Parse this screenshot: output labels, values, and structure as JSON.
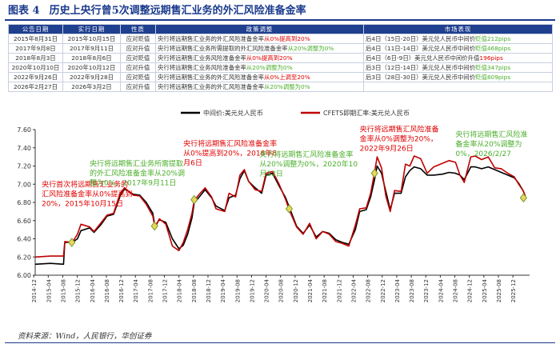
{
  "figure": {
    "label": "图表 4",
    "title": "历史上央行曾5次调整远期售汇业务的外汇风险准备金率"
  },
  "table": {
    "headers": [
      "公告日期",
      "实行日期",
      "性质",
      "政策调整",
      "市场表现"
    ],
    "rows": [
      {
        "announce": "2015年8月31日",
        "effective": "2015年10月15日",
        "nature": "应对贬值",
        "policy_pre": "央行将远期售汇业务的外汇风险准备金率",
        "policy_hl": "从0%提高到20%",
        "policy_hl_class": "red",
        "market_pre": "后4日（15日-20日）美元兑人民币中间价",
        "market_hl": "贬值212pips",
        "market_hl_class": "green"
      },
      {
        "announce": "2017年9月8日",
        "effective": "2017年9月11日",
        "nature": "应对升值",
        "policy_pre": "央行将远期售汇业务所需提取的外汇风险准备金率",
        "policy_hl": "从20%调整为0%",
        "policy_hl_class": "green",
        "market_pre": "后4日（11日-14日）美元兑人民币中间价",
        "market_hl": "贬值468pips",
        "market_hl_class": "green"
      },
      {
        "announce": "2018年8月3日",
        "effective": "2018年8月6日",
        "nature": "应对贬值",
        "policy_pre": "央行将远期售汇业务风险准备金率",
        "policy_hl": "从0%提高到20%",
        "policy_hl_class": "red",
        "market_pre": "后4日（6日-9日）美元兑人民币中间价升值",
        "market_hl": "196pips",
        "market_hl_class": "red"
      },
      {
        "announce": "2020年10月10日",
        "effective": "2020年10月12日",
        "nature": "应对升值",
        "policy_pre": "央行将远期售汇业务风险准备金率",
        "policy_hl": "从20%调整为0%",
        "policy_hl_class": "green",
        "market_pre": "后3日（12日-14日）美元兑人民币中间价",
        "market_hl": "贬值347pips",
        "market_hl_class": "green"
      },
      {
        "announce": "2022年9月26日",
        "effective": "2022年9月28日",
        "nature": "应对贬值",
        "policy_pre": "央行将远期售汇业务的外汇风险准备金率",
        "policy_hl": "从0%上调至20%",
        "policy_hl_class": "red",
        "market_pre": "后3日（28日-30日）美元兑人民币中间价",
        "market_hl": "贬值809pips",
        "market_hl_class": "green"
      },
      {
        "announce": "2026年2月27日",
        "effective": "2026年3月2日",
        "nature": "应对升值",
        "policy_pre": "央行将远期售汇业务的外汇风险准备金率",
        "policy_hl": "从20%调整为0%",
        "policy_hl_class": "green",
        "market_pre": "",
        "market_hl": "",
        "market_hl_class": "green"
      }
    ]
  },
  "chart_data": {
    "type": "line",
    "title": "",
    "xlabel": "",
    "ylabel": "",
    "ylim": [
      6.0,
      7.6
    ],
    "yticks": [
      "6.00",
      "6.20",
      "6.40",
      "6.60",
      "6.80",
      "7.00",
      "7.20",
      "7.40",
      "7.60"
    ],
    "yvalues": [
      6.0,
      6.2,
      6.4,
      6.6,
      6.8,
      7.0,
      7.2,
      7.4,
      7.6
    ],
    "xticks": [
      "2014-12",
      "2015-04",
      "2015-08",
      "2015-12",
      "2016-04",
      "2016-08",
      "2016-12",
      "2017-04",
      "2017-08",
      "2017-12",
      "2018-04",
      "2018-08",
      "2018-12",
      "2019-04",
      "2019-08",
      "2019-12",
      "2020-04",
      "2020-08",
      "2020-12",
      "2021-04",
      "2021-08",
      "2021-12",
      "2022-04",
      "2022-08",
      "2022-12",
      "2023-04",
      "2023-08",
      "2023-12",
      "2024-04",
      "2024-08",
      "2024-12",
      "2025-04",
      "2025-08",
      "2025-12"
    ],
    "xtick_labels": [
      "2014-12",
      "2015-04",
      "2015-08",
      "2015-12",
      "2016-04",
      "2016-08",
      "2016-12",
      "2017-04",
      "2017-08",
      "2017-12",
      "2018-04",
      "2018-08",
      "2018-12",
      "2019-04",
      "2019-08",
      "2019-12",
      "2020-04",
      "2020-08",
      "2020-12",
      "2021-04",
      "2021-08",
      "2021-12",
      "2022-04",
      "2022-08",
      "2022-12",
      "2023-04",
      "2023-08",
      "2023-12",
      "2024-04",
      "2024-08",
      "2024-12",
      "2025-04",
      "2025-08",
      "2025-12"
    ],
    "xmin": 2014.95,
    "xmax": 2026.3,
    "legend": {
      "placement": "top-right",
      "items": [
        {
          "name": "中间价:美元兑人民币",
          "color": "#000000"
        },
        {
          "name": "CFETS即期汇率:美元兑人民币",
          "color": "#c00000"
        }
      ]
    },
    "series": [
      {
        "name": "中间价:美元兑人民币",
        "color": "#000000",
        "points": [
          [
            2014.95,
            6.12
          ],
          [
            2015.3,
            6.13
          ],
          [
            2015.6,
            6.12
          ],
          [
            2015.63,
            6.36
          ],
          [
            2015.8,
            6.36
          ],
          [
            2015.92,
            6.4
          ],
          [
            2016.0,
            6.49
          ],
          [
            2016.2,
            6.52
          ],
          [
            2016.3,
            6.47
          ],
          [
            2016.45,
            6.55
          ],
          [
            2016.6,
            6.65
          ],
          [
            2016.75,
            6.67
          ],
          [
            2016.9,
            6.87
          ],
          [
            2017.0,
            6.95
          ],
          [
            2017.2,
            6.89
          ],
          [
            2017.35,
            6.88
          ],
          [
            2017.5,
            6.8
          ],
          [
            2017.65,
            6.68
          ],
          [
            2017.7,
            6.54
          ],
          [
            2017.8,
            6.61
          ],
          [
            2017.95,
            6.58
          ],
          [
            2018.1,
            6.4
          ],
          [
            2018.25,
            6.29
          ],
          [
            2018.35,
            6.33
          ],
          [
            2018.45,
            6.45
          ],
          [
            2018.55,
            6.63
          ],
          [
            2018.6,
            6.79
          ],
          [
            2018.7,
            6.85
          ],
          [
            2018.85,
            6.94
          ],
          [
            2019.0,
            6.85
          ],
          [
            2019.1,
            6.76
          ],
          [
            2019.3,
            6.71
          ],
          [
            2019.4,
            6.85
          ],
          [
            2019.55,
            6.88
          ],
          [
            2019.65,
            7.06
          ],
          [
            2019.75,
            7.15
          ],
          [
            2019.85,
            7.03
          ],
          [
            2020.0,
            6.96
          ],
          [
            2020.15,
            6.9
          ],
          [
            2020.25,
            7.1
          ],
          [
            2020.4,
            7.12
          ],
          [
            2020.55,
            6.98
          ],
          [
            2020.7,
            6.85
          ],
          [
            2020.78,
            6.75
          ],
          [
            2020.95,
            6.54
          ],
          [
            2021.1,
            6.46
          ],
          [
            2021.25,
            6.55
          ],
          [
            2021.4,
            6.42
          ],
          [
            2021.55,
            6.48
          ],
          [
            2021.7,
            6.46
          ],
          [
            2021.85,
            6.39
          ],
          [
            2022.0,
            6.36
          ],
          [
            2022.15,
            6.34
          ],
          [
            2022.3,
            6.5
          ],
          [
            2022.4,
            6.7
          ],
          [
            2022.55,
            6.72
          ],
          [
            2022.65,
            6.86
          ],
          [
            2022.74,
            7.05
          ],
          [
            2022.8,
            7.2
          ],
          [
            2022.9,
            7.12
          ],
          [
            2023.0,
            6.92
          ],
          [
            2023.1,
            6.72
          ],
          [
            2023.2,
            6.9
          ],
          [
            2023.35,
            6.9
          ],
          [
            2023.45,
            7.08
          ],
          [
            2023.55,
            7.15
          ],
          [
            2023.65,
            7.19
          ],
          [
            2023.8,
            7.17
          ],
          [
            2023.95,
            7.1
          ],
          [
            2024.1,
            7.1
          ],
          [
            2024.3,
            7.11
          ],
          [
            2024.45,
            7.13
          ],
          [
            2024.6,
            7.12
          ],
          [
            2024.7,
            7.1
          ],
          [
            2024.8,
            7.05
          ],
          [
            2024.95,
            7.19
          ],
          [
            2025.05,
            7.19
          ],
          [
            2025.2,
            7.17
          ],
          [
            2025.35,
            7.19
          ],
          [
            2025.5,
            7.16
          ],
          [
            2025.65,
            7.13
          ],
          [
            2025.8,
            7.1
          ],
          [
            2025.95,
            7.07
          ],
          [
            2026.05,
            7.01
          ],
          [
            2026.15,
            6.93
          ],
          [
            2026.2,
            6.87
          ]
        ]
      },
      {
        "name": "CFETS即期汇率:美元兑人民币",
        "color": "#c00000",
        "points": [
          [
            2014.95,
            6.2
          ],
          [
            2015.3,
            6.21
          ],
          [
            2015.6,
            6.21
          ],
          [
            2015.63,
            6.37
          ],
          [
            2015.8,
            6.36
          ],
          [
            2015.92,
            6.45
          ],
          [
            2016.0,
            6.56
          ],
          [
            2016.2,
            6.53
          ],
          [
            2016.3,
            6.48
          ],
          [
            2016.45,
            6.57
          ],
          [
            2016.6,
            6.66
          ],
          [
            2016.75,
            6.68
          ],
          [
            2016.9,
            6.9
          ],
          [
            2017.0,
            6.96
          ],
          [
            2017.2,
            6.88
          ],
          [
            2017.35,
            6.87
          ],
          [
            2017.5,
            6.78
          ],
          [
            2017.65,
            6.65
          ],
          [
            2017.7,
            6.52
          ],
          [
            2017.8,
            6.62
          ],
          [
            2017.95,
            6.56
          ],
          [
            2018.1,
            6.32
          ],
          [
            2018.25,
            6.27
          ],
          [
            2018.35,
            6.36
          ],
          [
            2018.45,
            6.5
          ],
          [
            2018.55,
            6.68
          ],
          [
            2018.6,
            6.82
          ],
          [
            2018.7,
            6.88
          ],
          [
            2018.85,
            6.96
          ],
          [
            2019.0,
            6.86
          ],
          [
            2019.1,
            6.73
          ],
          [
            2019.3,
            6.7
          ],
          [
            2019.4,
            6.9
          ],
          [
            2019.55,
            6.86
          ],
          [
            2019.65,
            7.1
          ],
          [
            2019.75,
            7.16
          ],
          [
            2019.85,
            7.03
          ],
          [
            2020.0,
            6.94
          ],
          [
            2020.15,
            6.92
          ],
          [
            2020.25,
            7.12
          ],
          [
            2020.4,
            7.14
          ],
          [
            2020.55,
            7.0
          ],
          [
            2020.7,
            6.83
          ],
          [
            2020.78,
            6.72
          ],
          [
            2020.95,
            6.53
          ],
          [
            2021.1,
            6.45
          ],
          [
            2021.25,
            6.57
          ],
          [
            2021.4,
            6.4
          ],
          [
            2021.55,
            6.48
          ],
          [
            2021.7,
            6.45
          ],
          [
            2021.85,
            6.37
          ],
          [
            2022.0,
            6.35
          ],
          [
            2022.15,
            6.32
          ],
          [
            2022.3,
            6.55
          ],
          [
            2022.4,
            6.73
          ],
          [
            2022.55,
            6.74
          ],
          [
            2022.65,
            6.9
          ],
          [
            2022.74,
            7.13
          ],
          [
            2022.8,
            7.3
          ],
          [
            2022.9,
            7.18
          ],
          [
            2023.0,
            6.87
          ],
          [
            2023.1,
            6.7
          ],
          [
            2023.2,
            6.93
          ],
          [
            2023.35,
            6.92
          ],
          [
            2023.45,
            7.22
          ],
          [
            2023.55,
            7.2
          ],
          [
            2023.65,
            7.31
          ],
          [
            2023.8,
            7.28
          ],
          [
            2023.95,
            7.12
          ],
          [
            2024.1,
            7.19
          ],
          [
            2024.3,
            7.23
          ],
          [
            2024.45,
            7.26
          ],
          [
            2024.6,
            7.24
          ],
          [
            2024.7,
            7.1
          ],
          [
            2024.8,
            7.02
          ],
          [
            2024.95,
            7.3
          ],
          [
            2025.05,
            7.31
          ],
          [
            2025.2,
            7.27
          ],
          [
            2025.35,
            7.3
          ],
          [
            2025.5,
            7.18
          ],
          [
            2025.65,
            7.17
          ],
          [
            2025.8,
            7.12
          ],
          [
            2025.95,
            7.08
          ],
          [
            2026.05,
            7.0
          ],
          [
            2026.15,
            6.93
          ],
          [
            2026.2,
            6.87
          ]
        ]
      }
    ],
    "markers": [
      {
        "x": 2015.79,
        "y": 6.36,
        "label": "2015年10月15日"
      },
      {
        "x": 2017.69,
        "y": 6.54,
        "label": "2017年9月11日"
      },
      {
        "x": 2018.6,
        "y": 6.83,
        "label": "2018年8月6日"
      },
      {
        "x": 2020.78,
        "y": 6.73,
        "label": "2020年10月12日"
      },
      {
        "x": 2022.74,
        "y": 7.12,
        "label": "2022年9月26日"
      },
      {
        "x": 2026.16,
        "y": 6.85,
        "label": "2026/2/27"
      }
    ],
    "annotations": [
      {
        "lines": [
          "央行首次将远期售汇业务的",
          "汇风险准备金率从0%提高到",
          "20%，2015年10月15日"
        ],
        "class": "red",
        "x": 2015.1,
        "y": 6.97
      },
      {
        "lines": [
          "央行将远期售汇业务所需提取",
          "的外汇风险准备金率从20%调",
          "整为0%，2017年9月11日"
        ],
        "class": "green",
        "x": 2016.2,
        "y": 7.2
      },
      {
        "lines": [
          "央行将远期售汇风险准备金率",
          "从0%提高到20%，2018年8",
          "月6日"
        ],
        "class": "red",
        "x": 2018.35,
        "y": 7.42
      },
      {
        "lines": [
          "央行将远期售汇风险准备金率",
          "从20%调整为0%，2020年10",
          "月12日"
        ],
        "class": "green",
        "x": 2020.1,
        "y": 7.3
      },
      {
        "lines": [
          "央行将远期售汇风险准备",
          "金率从0%调整为20%，",
          "2022年9月26日"
        ],
        "class": "red",
        "x": 2022.4,
        "y": 7.58
      },
      {
        "lines": [
          "央行将远期售汇风险准",
          "备金率从20%调整为",
          "0%，2026/2/27"
        ],
        "class": "green",
        "x": 2024.6,
        "y": 7.52
      }
    ]
  },
  "source": "资料来源：Wind，人民银行，华创证券"
}
